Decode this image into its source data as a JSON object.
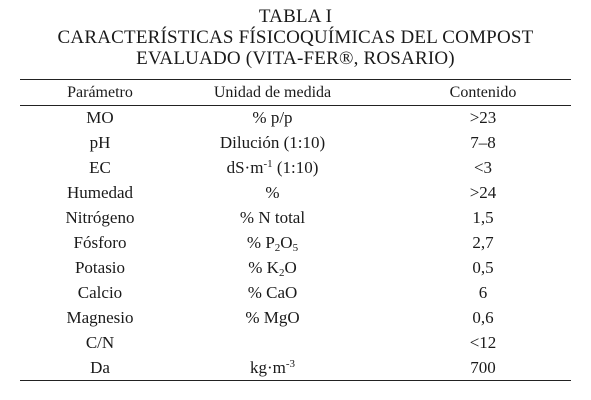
{
  "table": {
    "title": "TABLA I",
    "subtitle_line1": "CARACTERÍSTICAS FÍSICOQUÍMICAS DEL COMPOST",
    "subtitle_line2": "EVALUADO (VITA-FER®, ROSARIO)",
    "headers": [
      "Parámetro",
      "Unidad de medida",
      "Contenido"
    ],
    "rows": [
      {
        "param": "MO",
        "unit": "% p/p",
        "value": ">23"
      },
      {
        "param": "pH",
        "unit": "Dilución (1:10)",
        "value": "7–8"
      },
      {
        "param": "EC",
        "unit_base": "dS·m",
        "unit_sup": "-1",
        "unit_tail": " (1:10)",
        "value": "<3"
      },
      {
        "param": "Humedad",
        "unit": "%",
        "value": ">24"
      },
      {
        "param": "Nitrógeno",
        "unit": "% N total",
        "value": "1,5"
      },
      {
        "param": "Fósforo",
        "unit_base": "% P",
        "unit_sub1": "2",
        "unit_mid": "O",
        "unit_sub2": "5",
        "value": "2,7"
      },
      {
        "param": "Potasio",
        "unit_base": "% K",
        "unit_sub1": "2",
        "unit_mid": "O",
        "value": "0,5"
      },
      {
        "param": "Calcio",
        "unit": "% CaO",
        "value": "6"
      },
      {
        "param": "Magnesio",
        "unit": "% MgO",
        "value": "0,6"
      },
      {
        "param": "C/N",
        "unit": "",
        "value": "<12"
      },
      {
        "param": "Da",
        "unit_base": "kg·m",
        "unit_sup": "-3",
        "value": "700"
      }
    ]
  }
}
